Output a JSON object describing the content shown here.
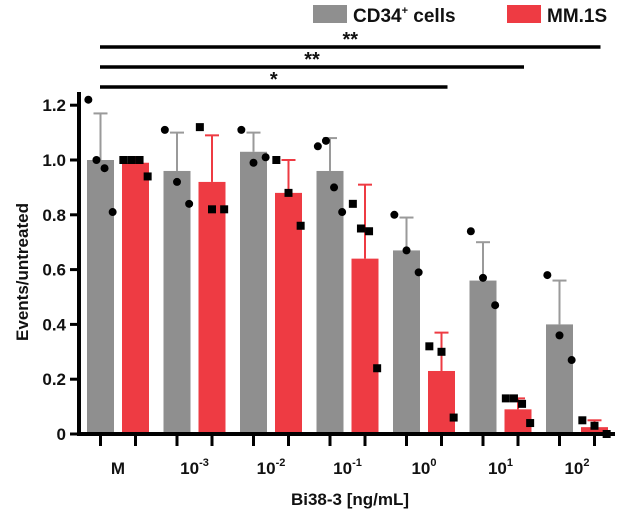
{
  "chart_data": {
    "type": "bar",
    "title": "",
    "xlabel": "Bi38-3 [ng/mL]",
    "ylabel": "Events/untreated",
    "ylim": [
      0,
      1.25
    ],
    "yticks": [
      "0",
      "0.2",
      "0.4",
      "0.6",
      "0.8",
      "1.0",
      "1.2"
    ],
    "ytick_values": [
      0,
      0.2,
      0.4,
      0.6,
      0.8,
      1.0,
      1.2
    ],
    "grid": false,
    "legend_position": "top-right",
    "categories": [
      {
        "base": "M",
        "exp": ""
      },
      {
        "base": "10",
        "exp": "-3"
      },
      {
        "base": "10",
        "exp": "-2"
      },
      {
        "base": "10",
        "exp": "-1"
      },
      {
        "base": "10",
        "exp": "0"
      },
      {
        "base": "10",
        "exp": "1"
      },
      {
        "base": "10",
        "exp": "2"
      }
    ],
    "series": [
      {
        "name": "CD34",
        "name_sup": "+",
        "name_suffix": " cells",
        "color": "#8f8f8f",
        "marker": "circle",
        "values": [
          1.0,
          0.96,
          1.03,
          0.96,
          0.67,
          0.56,
          0.4
        ],
        "error_upper": [
          1.17,
          1.1,
          1.1,
          1.08,
          0.79,
          0.7,
          0.56
        ],
        "points": [
          [
            1.22,
            1.0,
            0.97,
            0.81
          ],
          [
            1.11,
            0.92,
            0.84
          ],
          [
            1.11,
            0.99,
            1.01
          ],
          [
            1.05,
            1.07,
            0.9,
            0.81
          ],
          [
            0.8,
            0.67,
            0.59
          ],
          [
            0.74,
            0.57,
            0.47
          ],
          [
            0.58,
            0.36,
            0.27
          ]
        ]
      },
      {
        "name": "MM.1S",
        "name_sup": "",
        "name_suffix": "",
        "color": "#ee3b43",
        "marker": "square",
        "values": [
          0.99,
          0.92,
          0.88,
          0.64,
          0.23,
          0.09,
          0.025
        ],
        "error_upper": [
          1.01,
          1.09,
          1.0,
          0.91,
          0.37,
          0.13,
          0.05
        ],
        "points": [
          [
            1.0,
            1.0,
            1.0,
            0.94
          ],
          [
            1.12,
            0.82,
            0.82
          ],
          [
            1.0,
            0.88,
            0.76
          ],
          [
            0.84,
            0.75,
            0.74,
            0.24
          ],
          [
            0.32,
            0.3,
            0.06
          ],
          [
            0.13,
            0.13,
            0.11,
            0.04
          ],
          [
            0.05,
            0.03,
            0.0
          ]
        ]
      }
    ],
    "annotations": [
      {
        "label": "**",
        "from_category": 0,
        "to_category": 6,
        "type": "significance-bracket"
      },
      {
        "label": "**",
        "from_category": 0,
        "to_category": 5,
        "type": "significance-bracket"
      },
      {
        "label": "*",
        "from_category": 0,
        "to_category": 4,
        "type": "significance-bracket"
      }
    ]
  }
}
